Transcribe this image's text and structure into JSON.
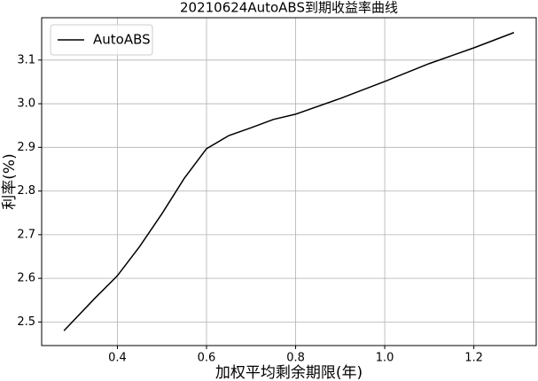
{
  "chart_data": {
    "type": "line",
    "title": "20210624AutoABS到期收益率曲线",
    "x_label": "加权平均剩余期限(年)",
    "y_label": "利率(%)",
    "x": [
      0.28,
      0.35,
      0.4,
      0.45,
      0.5,
      0.55,
      0.6,
      0.65,
      0.7,
      0.75,
      0.8,
      0.9,
      1.0,
      1.1,
      1.2,
      1.29
    ],
    "series": [
      {
        "name": "AutoABS",
        "color": "#000000",
        "values": [
          2.48,
          2.555,
          2.606,
          2.673,
          2.748,
          2.829,
          2.897,
          2.927,
          2.945,
          2.964,
          2.976,
          3.012,
          3.051,
          3.092,
          3.128,
          3.163
        ]
      }
    ],
    "xlim": [
      0.23,
      1.34
    ],
    "ylim": [
      2.446,
      3.197
    ],
    "xticks": [
      0.4,
      0.6,
      0.8,
      {
        "value": 1.0,
        "label": "1.0"
      },
      1.2
    ],
    "yticks": [
      2.5,
      2.6,
      2.7,
      2.8,
      2.9,
      {
        "value": 3.0,
        "label": "3.0"
      },
      3.1
    ],
    "grid": true,
    "legend": "upper-left"
  }
}
